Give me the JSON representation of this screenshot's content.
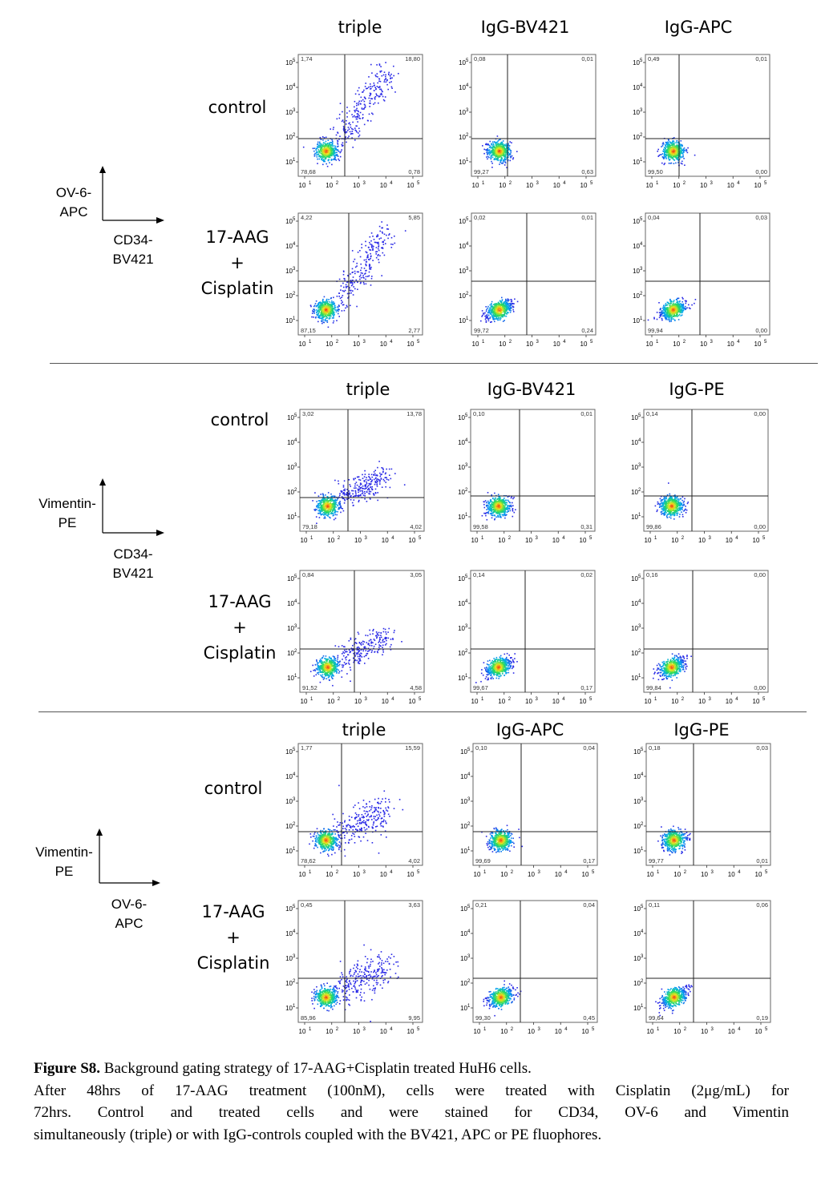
{
  "panels": [
    {
      "columns": [
        "triple",
        "IgG-BV421",
        "IgG-APC"
      ],
      "rows": [
        {
          "label_lines": [
            "control"
          ],
          "quads": [
            [
              "1,74",
              "18,80",
              "78,68",
              "0,78"
            ],
            [
              "0,08",
              "0,01",
              "99,27",
              "0,63"
            ],
            [
              "0,49",
              "0,01",
              "99,50",
              "0,00"
            ]
          ]
        },
        {
          "label_lines": [
            "17-AAG",
            "+",
            "Cisplatin"
          ],
          "quads": [
            [
              "4,22",
              "5,85",
              "87,15",
              "2,77"
            ],
            [
              "0,02",
              "0,01",
              "99,72",
              "0,24"
            ],
            [
              "0,04",
              "0,03",
              "99,94",
              "0,00"
            ]
          ]
        }
      ],
      "y_axis_lines": [
        "OV-6-",
        "APC"
      ],
      "x_axis_lines": [
        "CD34-",
        "BV421"
      ]
    },
    {
      "columns": [
        "triple",
        "IgG-BV421",
        "IgG-PE"
      ],
      "rows": [
        {
          "label_lines": [
            "control"
          ],
          "quads": [
            [
              "3,02",
              "13,78",
              "79,18",
              "4,02"
            ],
            [
              "0,10",
              "0,01",
              "99,58",
              "0,31"
            ],
            [
              "0,14",
              "0,00",
              "99,86",
              "0,00"
            ]
          ]
        },
        {
          "label_lines": [
            "17-AAG",
            "+",
            "Cisplatin"
          ],
          "quads": [
            [
              "0,84",
              "3,05",
              "91,52",
              "4,58"
            ],
            [
              "0,14",
              "0,02",
              "99,67",
              "0,17"
            ],
            [
              "0,16",
              "0,00",
              "99,84",
              "0,00"
            ]
          ]
        }
      ],
      "y_axis_lines": [
        "Vimentin-",
        "PE"
      ],
      "x_axis_lines": [
        "CD34-",
        "BV421"
      ]
    },
    {
      "columns": [
        "triple",
        "IgG-APC",
        "IgG-PE"
      ],
      "rows": [
        {
          "label_lines": [
            "control"
          ],
          "quads": [
            [
              "1,77",
              "15,59",
              "78,62",
              "4,02"
            ],
            [
              "0,10",
              "0,04",
              "99,69",
              "0,17"
            ],
            [
              "0,18",
              "0,03",
              "99,77",
              "0,01"
            ]
          ]
        },
        {
          "label_lines": [
            "17-AAG",
            "+",
            "Cisplatin"
          ],
          "quads": [
            [
              "0,45",
              "3,63",
              "85,96",
              "9,95"
            ],
            [
              "0,21",
              "0,04",
              "99,30",
              "0,45"
            ],
            [
              "0,11",
              "0,06",
              "99,64",
              "0,19"
            ]
          ]
        }
      ],
      "y_axis_lines": [
        "Vimentin-",
        "PE"
      ],
      "x_axis_lines": [
        "OV-6-",
        "APC"
      ]
    }
  ],
  "chart_data": {
    "type": "scatter",
    "x_scale": "log",
    "y_scale": "log",
    "x_ticks": [
      "10",
      "10",
      "10",
      "10",
      "10"
    ],
    "tick_exponents": [
      "1",
      "2",
      "3",
      "4",
      "5"
    ],
    "y_ticks": [
      "10",
      "10",
      "10",
      "10",
      "10"
    ],
    "quadrant_order": [
      "upper-left",
      "upper-right",
      "lower-left",
      "lower-right"
    ]
  },
  "caption": {
    "label": "Figure S8.",
    "title_text": " Background gating strategy of 17-AAG+Cisplatin treated HuH6 cells.",
    "line2": "After 48hrs of 17-AAG treatment (100nM), cells were treated with Cisplatin (2μg/mL) for",
    "line3": "72hrs. Control and treated cells and were stained for CD34, OV-6 and Vimentin",
    "line4": "simultaneously (triple) or with IgG-controls coupled with the BV421, APC or PE fluophores."
  }
}
